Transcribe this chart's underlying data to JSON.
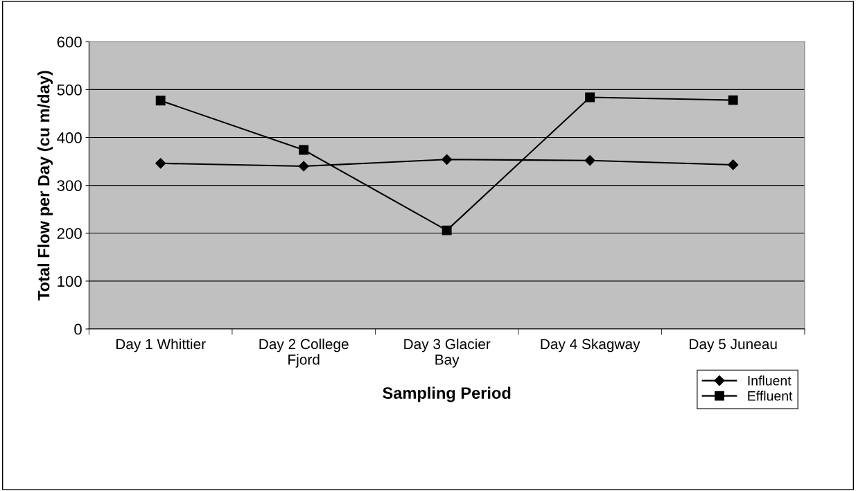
{
  "chart_data": {
    "type": "line",
    "xlabel": "Sampling Period",
    "ylabel": "Total Flow per Day (cu m/day)",
    "categories": [
      "Day 1 Whittier",
      "Day 2 College\nFjord",
      "Day 3 Glacier\nBay",
      "Day 4 Skagway",
      "Day 5 Juneau"
    ],
    "series": [
      {
        "name": "Influent",
        "color": "#000000",
        "marker": "diamond",
        "values": [
          346,
          340,
          354,
          352,
          343
        ]
      },
      {
        "name": "Effluent",
        "color": "#000000",
        "marker": "square",
        "values": [
          477,
          374,
          206,
          484,
          478
        ]
      }
    ],
    "ylim": [
      0,
      600
    ],
    "yticks": [
      0,
      100,
      200,
      300,
      400,
      500,
      600
    ],
    "grid": "y",
    "legend": "bottom right",
    "line_style": "solid"
  }
}
